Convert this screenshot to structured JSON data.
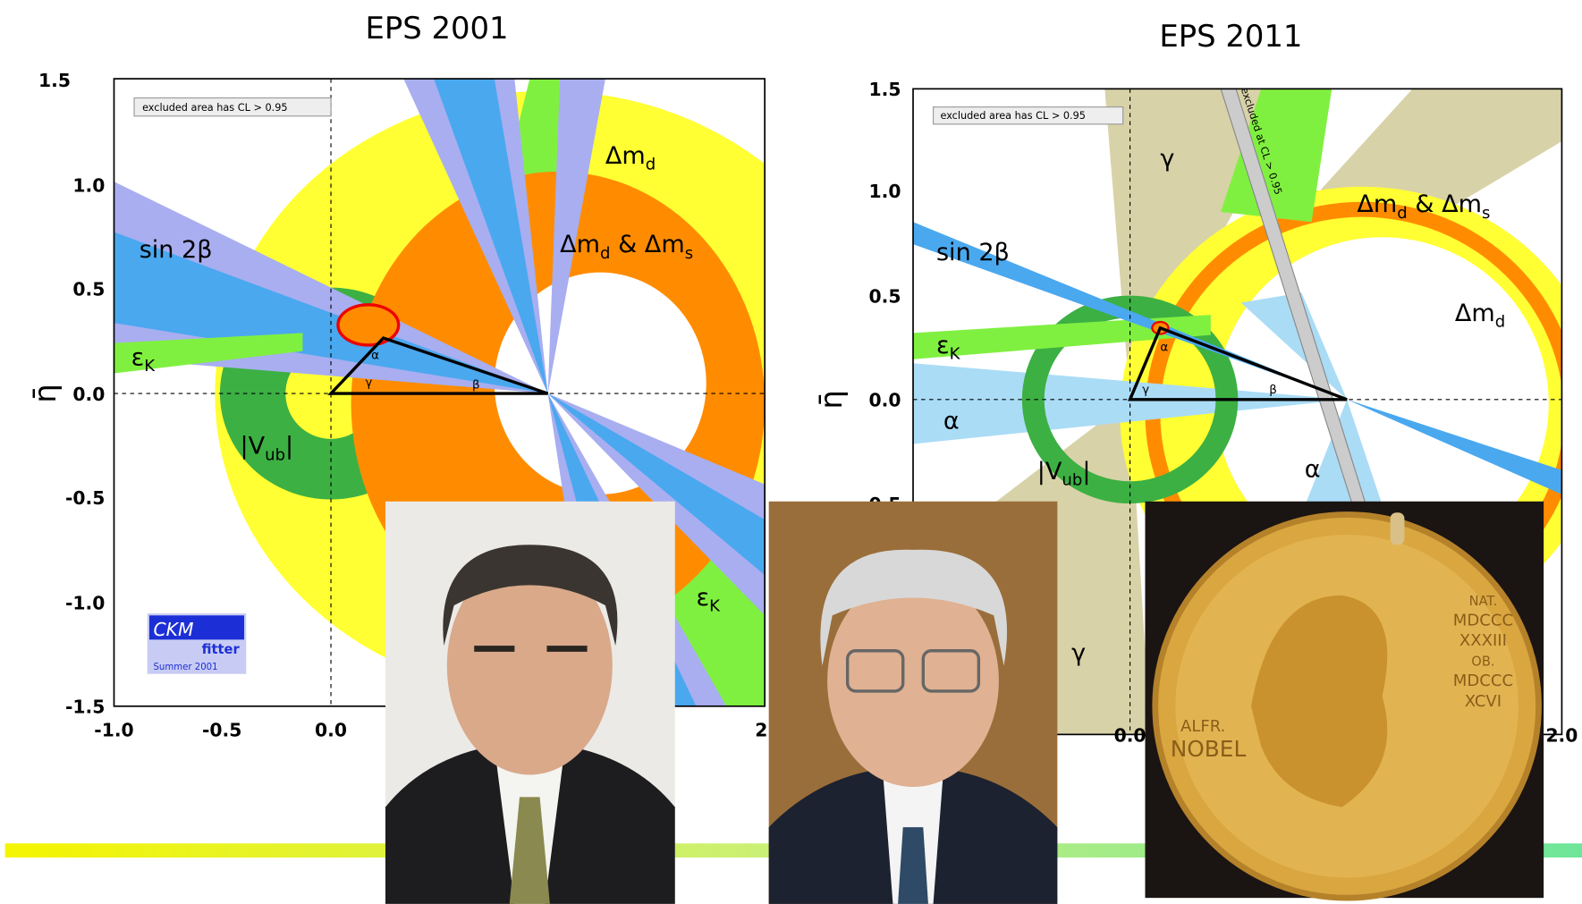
{
  "left_plot": {
    "title": "EPS 2001",
    "y_label": "η̄",
    "y_ticks": [
      "1.5",
      "1.0",
      "0.5",
      "0.0",
      "-0.5",
      "-1.0",
      "-1.5"
    ],
    "x_ticks": [
      "-1.0",
      "-0.5",
      "0.0",
      "2."
    ],
    "legend": "excluded area has CL > 0.95",
    "labels": {
      "delta_md": [
        "Δm",
        "d"
      ],
      "delta_md_ms": [
        "Δm",
        "d",
        " & Δm",
        "s"
      ],
      "sin2beta": "sin 2β",
      "epsk_left": [
        "ε",
        "K"
      ],
      "epsk_right": [
        "ε",
        "K"
      ],
      "vub": [
        "|V",
        "ub",
        "|"
      ],
      "alpha": "α",
      "beta": "β",
      "gamma": "γ"
    },
    "logo": {
      "line1": "CKM",
      "line2": "fitter",
      "line3": "Summer 2001"
    }
  },
  "right_plot": {
    "title": "EPS 2011",
    "y_label": "η̄",
    "y_ticks": [
      "1.5",
      "1.0",
      "0.5",
      "0.0",
      "-0.5"
    ],
    "x_ticks": [
      "0.0",
      "2.0"
    ],
    "legend": "excluded area has CL > 0.95",
    "excluded_note": "excluded at CL > 0.95",
    "labels": {
      "gamma_top": "γ",
      "gamma_bottom": "γ",
      "delta_md_ms": [
        "Δm",
        "d",
        " & Δm",
        "s"
      ],
      "delta_md": [
        "Δm",
        "d"
      ],
      "sin2beta": "sin 2β",
      "epsk": [
        "ε",
        "K"
      ],
      "alpha_left": "α",
      "alpha_bottom": "α",
      "vub": [
        "|V",
        "ub",
        "|"
      ],
      "alpha": "α",
      "beta": "β",
      "gamma": "γ"
    }
  },
  "medal": {
    "left": [
      "ALFR.",
      "NOBEL"
    ],
    "right": [
      "NAT.",
      "MDCCC",
      "XXXIII",
      "OB.",
      "MDCCC",
      "XCVI"
    ]
  }
}
